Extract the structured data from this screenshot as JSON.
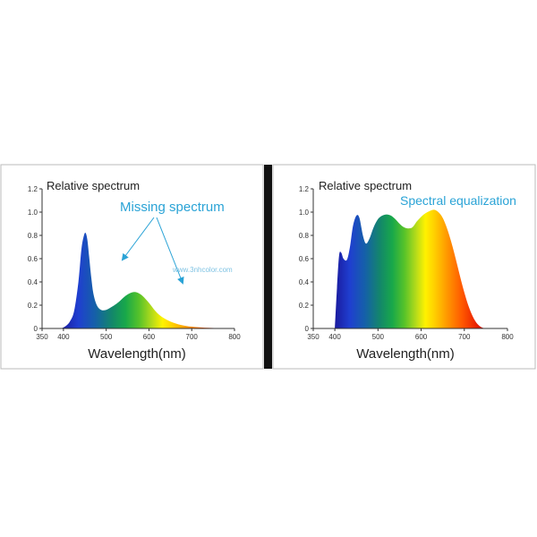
{
  "chart_data": [
    {
      "type": "area",
      "title": "Relative spectrum",
      "annotation": "Missing spectrum",
      "watermark": "www.3nhcolor.com",
      "xlabel": "Wavelength(nm)",
      "ylabel": "",
      "xlim": [
        350,
        800
      ],
      "ylim": [
        0,
        1.2
      ],
      "xticks": [
        "350",
        "400",
        "500",
        "600",
        "700",
        "800"
      ],
      "yticks": [
        "0",
        "0.2",
        "0.4",
        "0.6",
        "0.8",
        "1.0",
        "1.2"
      ],
      "grid": false,
      "annotation_color": "#2aa3d6",
      "series": [
        {
          "name": "Relative spectrum",
          "x": [
            395,
            405,
            415,
            425,
            435,
            442,
            448,
            452,
            456,
            460,
            465,
            470,
            478,
            488,
            500,
            515,
            530,
            545,
            560,
            572,
            585,
            600,
            615,
            630,
            650,
            675,
            700,
            730,
            760,
            790
          ],
          "values": [
            0.0,
            0.02,
            0.06,
            0.15,
            0.4,
            0.68,
            0.8,
            0.82,
            0.76,
            0.62,
            0.44,
            0.3,
            0.2,
            0.16,
            0.16,
            0.19,
            0.23,
            0.28,
            0.31,
            0.31,
            0.28,
            0.22,
            0.15,
            0.1,
            0.06,
            0.03,
            0.015,
            0.007,
            0.003,
            0.0
          ]
        }
      ]
    },
    {
      "type": "area",
      "title": "Relative spectrum",
      "annotation": "Spectral equalization",
      "xlabel": "Wavelength(nm)",
      "ylabel": "",
      "xlim": [
        350,
        800
      ],
      "ylim": [
        0,
        1.2
      ],
      "xticks": [
        "350",
        "400",
        "500",
        "600",
        "700",
        "800"
      ],
      "yticks": [
        "0",
        "0.2",
        "0.4",
        "0.6",
        "0.8",
        "1.0",
        "1.2"
      ],
      "grid": false,
      "annotation_color": "#2aa3d6",
      "series": [
        {
          "name": "Relative spectrum",
          "x": [
            400,
            405,
            410,
            415,
            420,
            428,
            435,
            442,
            450,
            457,
            465,
            472,
            480,
            490,
            500,
            510,
            520,
            530,
            540,
            550,
            560,
            570,
            580,
            590,
            600,
            610,
            620,
            630,
            640,
            650,
            660,
            670,
            680,
            690,
            700,
            710,
            720,
            730,
            740,
            750
          ],
          "values": [
            0.0,
            0.35,
            0.63,
            0.65,
            0.6,
            0.59,
            0.7,
            0.88,
            0.97,
            0.95,
            0.8,
            0.73,
            0.77,
            0.87,
            0.94,
            0.97,
            0.98,
            0.97,
            0.94,
            0.9,
            0.87,
            0.86,
            0.87,
            0.92,
            0.96,
            0.99,
            1.01,
            1.02,
            1.0,
            0.95,
            0.86,
            0.74,
            0.6,
            0.45,
            0.31,
            0.19,
            0.1,
            0.04,
            0.01,
            0.0
          ]
        }
      ]
    }
  ],
  "colors": {
    "background": "#ffffff",
    "divider": "#111111",
    "axis": "#333333",
    "text": "#222222",
    "annotation": "#2aa3d6"
  }
}
